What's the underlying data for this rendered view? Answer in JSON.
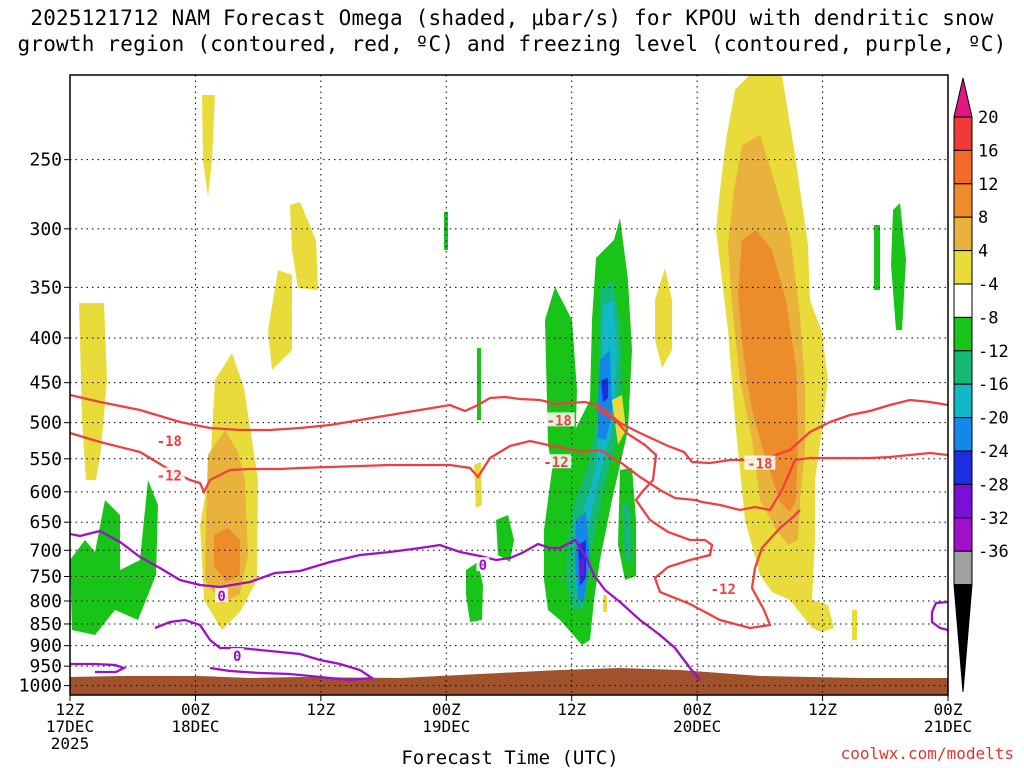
{
  "chart_data": {
    "type": "heatmap",
    "title_line1": "2025121712 NAM Forecast Omega (shaded, μbar/s) for KPOU with dendritic snow",
    "title_line2": "growth region (contoured, red, ºC) and freezing level (contoured, purple, ºC)",
    "xlabel": "Forecast Time (UTC)",
    "ylabel": "",
    "credit": "coolwx.com/modelts",
    "x_ticks": [
      {
        "hours": 0,
        "line1": "12Z",
        "line2": "17DEC",
        "line3": "2025"
      },
      {
        "hours": 12,
        "line1": "00Z",
        "line2": "18DEC",
        "line3": ""
      },
      {
        "hours": 24,
        "line1": "12Z",
        "line2": "",
        "line3": ""
      },
      {
        "hours": 36,
        "line1": "00Z",
        "line2": "19DEC",
        "line3": ""
      },
      {
        "hours": 48,
        "line1": "12Z",
        "line2": "",
        "line3": ""
      },
      {
        "hours": 60,
        "line1": "00Z",
        "line2": "20DEC",
        "line3": ""
      },
      {
        "hours": 72,
        "line1": "12Z",
        "line2": "",
        "line3": ""
      },
      {
        "hours": 84,
        "line1": "00Z",
        "line2": "21DEC",
        "line3": ""
      }
    ],
    "xlim_hours": [
      0,
      84
    ],
    "y_ticks_hpa": [
      250,
      300,
      350,
      400,
      450,
      500,
      550,
      600,
      650,
      700,
      750,
      800,
      850,
      900,
      950,
      1000
    ],
    "ylim_hpa": [
      200,
      1025
    ],
    "colorbar": {
      "labels": [
        "20",
        "16",
        "12",
        "8",
        "4",
        "-4",
        "-8",
        "-12",
        "-16",
        "-20",
        "-24",
        "-28",
        "-32",
        "-36"
      ],
      "colors": [
        "#f03a3a",
        "#f26a2a",
        "#ec8c2a",
        "#e8b23c",
        "#e9dc3a",
        "#ffffff",
        "#18c418",
        "#16b878",
        "#12b8c8",
        "#1488e8",
        "#1c2ee0",
        "#7a10d8",
        "#a010c8",
        "#a0a0a0"
      ],
      "top_arrow_color": "#e01880",
      "bottom_arrow_color": "#000000"
    },
    "terrain_color": "#a0522d",
    "contours": {
      "dgz_color": "#ef4040",
      "freezing_color": "#9b10c8",
      "labels": [
        {
          "text": "-18",
          "hours": 9.5,
          "hpa": 525
        },
        {
          "text": "-12",
          "hours": 9.5,
          "hpa": 575
        },
        {
          "text": "-18",
          "hours": 46.8,
          "hpa": 497
        },
        {
          "text": "-12",
          "hours": 46.5,
          "hpa": 555
        },
        {
          "text": "-18",
          "hours": 66,
          "hpa": 557
        },
        {
          "text": "-12",
          "hours": 62.5,
          "hpa": 775
        },
        {
          "text": "0",
          "hours": 14.5,
          "hpa": 790
        },
        {
          "text": "0",
          "hours": 16,
          "hpa": 925
        },
        {
          "text": "0",
          "hours": 39.5,
          "hpa": 728
        }
      ]
    }
  }
}
